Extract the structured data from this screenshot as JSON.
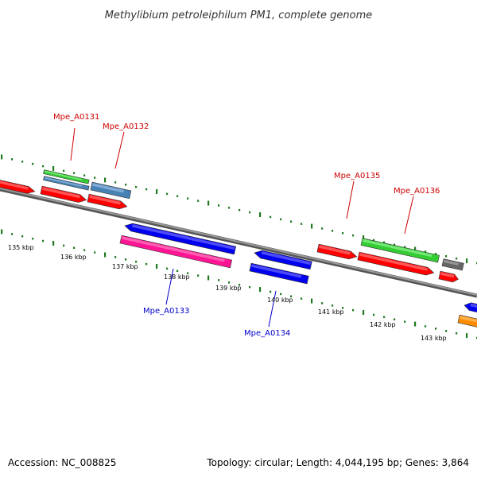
{
  "title": "Methylibium petroleiphilum PM1, complete genome",
  "footer": {
    "accession": "Accession: NC_008825",
    "summary": "Topology: circular; Length: 4,044,195 bp; Genes: 3,864"
  },
  "colors": {
    "backbone": "#7a7a7a",
    "tick": "#1f7a1f",
    "label_top": "#cc0000",
    "label_bottom": "#0000cc"
  },
  "scale": {
    "unit": "kbp",
    "labels": [
      "135 kbp",
      "136 kbp",
      "137 kbp",
      "138 kbp",
      "139 kbp",
      "140 kbp",
      "141 kbp",
      "142 kbp",
      "143 kbp"
    ]
  },
  "gene_labels_top": [
    {
      "name": "Mpe_A0131",
      "color": "#cc0000"
    },
    {
      "name": "Mpe_A0132",
      "color": "#cc0000"
    },
    {
      "name": "Mpe_A0135",
      "color": "#cc0000"
    },
    {
      "name": "Mpe_A0136",
      "color": "#cc0000"
    }
  ],
  "gene_labels_bottom": [
    {
      "name": "Mpe_A0133",
      "color": "#0000cc"
    },
    {
      "name": "Mpe_A0134",
      "color": "#0000cc"
    }
  ]
}
